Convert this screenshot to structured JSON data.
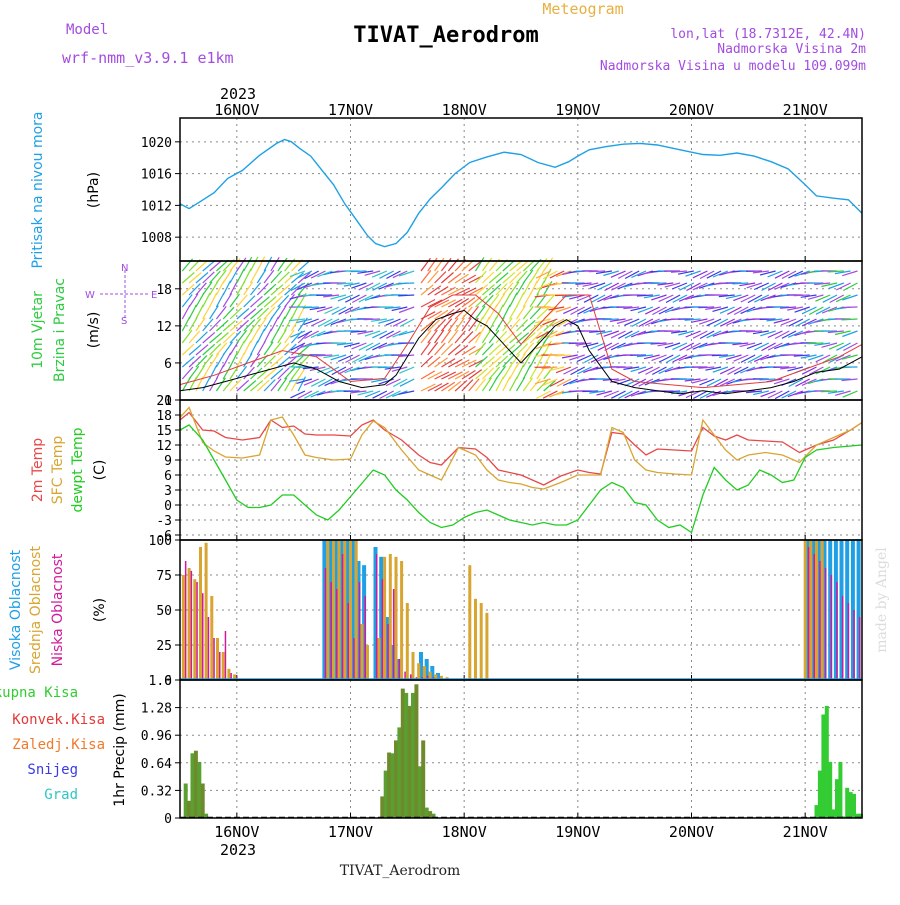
{
  "header": {
    "model_label": "Model",
    "model_name": "wrf-nmm_v3.9.1 e1km",
    "meteogram_label": "Meteogram",
    "station_title": "TIVAT_Aerodrom",
    "location_line": "lon,lat (18.7312E, 42.4N)",
    "elevation_line": "Nadmorska Visina 2m",
    "model_elevation_line": "Nadmorska Visina u modelu 109.099m",
    "watermark": "made by Angel",
    "footer_title": "TIVAT_Aerodrom"
  },
  "colors": {
    "pressure": "#1fa0e6",
    "rain_total": "#33cc33",
    "rain_conv": "#e33a3a",
    "rain_frozen": "#f07a2a",
    "snow": "#3a3ae6",
    "hail": "#2ec6c6",
    "temp2m": "#e84848",
    "sfc": "#d9a531",
    "dew": "#22cc22",
    "high": "#1fa0e6",
    "mid": "#d9a531",
    "low": "#d1199a",
    "wind_speed": "#000000",
    "gust": "#e33a3a",
    "model_purple": "#a24ce0",
    "meteogram_orange": "#e8b040"
  },
  "time_axis": {
    "year": "2023",
    "days": [
      "16NOV",
      "17NOV",
      "18NOV",
      "19NOV",
      "20NOV",
      "21NOV"
    ],
    "day_positions": [
      0.5,
      1.5,
      2.5,
      3.5,
      4.5,
      5.5
    ],
    "range": [
      0,
      6
    ]
  },
  "chart_data": [
    {
      "id": "pressure",
      "type": "line",
      "panel_label": "Pritisak na nivou mora",
      "ylabel": "(hPa)",
      "ylim": [
        1005,
        1023
      ],
      "yticks": [
        1008,
        1012,
        1016,
        1020
      ],
      "grid": true,
      "x": [
        0.0,
        0.08,
        0.17,
        0.3,
        0.42,
        0.55,
        0.7,
        0.85,
        0.92,
        0.98,
        1.05,
        1.15,
        1.25,
        1.35,
        1.45,
        1.55,
        1.65,
        1.72,
        1.8,
        1.9,
        2.0,
        2.1,
        2.2,
        2.3,
        2.42,
        2.55,
        2.7,
        2.85,
        3.0,
        3.15,
        3.3,
        3.42,
        3.5,
        3.6,
        3.75,
        3.9,
        4.05,
        4.2,
        4.4,
        4.6,
        4.75,
        4.9,
        5.05,
        5.2,
        5.35,
        5.5,
        5.6,
        5.75,
        5.88,
        6.0
      ],
      "values": [
        1012.2,
        1011.6,
        1012.4,
        1013.6,
        1015.4,
        1016.4,
        1018.3,
        1019.8,
        1020.3,
        1020.0,
        1019.2,
        1018.2,
        1016.4,
        1014.6,
        1012.2,
        1010.2,
        1008.2,
        1007.2,
        1006.8,
        1007.2,
        1008.6,
        1011.0,
        1012.8,
        1014.2,
        1016.0,
        1017.4,
        1018.1,
        1018.7,
        1018.4,
        1017.4,
        1016.8,
        1017.5,
        1018.2,
        1019.0,
        1019.4,
        1019.7,
        1019.8,
        1019.6,
        1019.0,
        1018.4,
        1018.3,
        1018.6,
        1018.2,
        1017.5,
        1016.6,
        1014.6,
        1013.2,
        1012.9,
        1012.7,
        1011.0
      ]
    },
    {
      "id": "wind",
      "type": "line",
      "panel_label_1": "10m Vjetar",
      "panel_label_2": "Brzina i Pravac",
      "ylabel": "(m/s)",
      "compass": [
        "N",
        "S",
        "W",
        "E"
      ],
      "ylim": [
        0,
        22.5
      ],
      "yticks": [
        0,
        6,
        12,
        18
      ],
      "grid": true,
      "series": [
        {
          "kind": "speed",
          "x": [
            0.0,
            0.2,
            0.4,
            0.6,
            0.8,
            1.0,
            1.2,
            1.4,
            1.6,
            1.8,
            1.9,
            2.0,
            2.1,
            2.25,
            2.4,
            2.5,
            2.6,
            2.7,
            2.8,
            2.9,
            3.0,
            3.1,
            3.2,
            3.3,
            3.4,
            3.5,
            3.6,
            3.8,
            4.0,
            4.2,
            4.4,
            4.6,
            4.8,
            5.0,
            5.2,
            5.4,
            5.6,
            5.8,
            6.0
          ],
          "values": [
            1.5,
            2.0,
            3.0,
            4.0,
            5.0,
            6.0,
            5.0,
            3.0,
            2.0,
            2.5,
            4.0,
            7.0,
            10.0,
            13.0,
            14.0,
            14.5,
            13.0,
            12.0,
            10.0,
            8.0,
            6.0,
            8.0,
            10.0,
            12.0,
            13.0,
            12.0,
            8.0,
            3.0,
            2.0,
            1.5,
            1.0,
            1.5,
            1.0,
            1.5,
            2.0,
            3.0,
            4.5,
            5.0,
            7.0
          ]
        },
        {
          "kind": "gust",
          "x": [
            0.0,
            0.3,
            0.6,
            0.9,
            1.2,
            1.5,
            1.8,
            2.0,
            2.2,
            2.4,
            2.6,
            2.8,
            3.0,
            3.2,
            3.4,
            3.6,
            3.8,
            4.0,
            4.3,
            4.6,
            4.9,
            5.2,
            5.5,
            5.8,
            6.0
          ],
          "values": [
            2.5,
            4.0,
            6.0,
            8.0,
            7.0,
            3.0,
            3.5,
            9.0,
            15.0,
            17.0,
            17.0,
            14.0,
            9.0,
            13.0,
            17.0,
            17.0,
            5.0,
            3.0,
            2.5,
            2.0,
            2.5,
            3.0,
            5.0,
            7.0,
            9.0
          ]
        }
      ]
    },
    {
      "id": "temperature",
      "type": "line",
      "panel_labels": [
        "2m Temp",
        "SFC Temp",
        "dewpt Temp"
      ],
      "ylabel": "(C)",
      "ylim": [
        -7,
        21
      ],
      "yticks": [
        -6,
        -3,
        0,
        3,
        6,
        9,
        12,
        15,
        18,
        21
      ],
      "grid": true,
      "series": [
        {
          "name": "2m Temp",
          "x": [
            0.0,
            0.08,
            0.2,
            0.3,
            0.4,
            0.55,
            0.7,
            0.8,
            0.9,
            1.0,
            1.1,
            1.2,
            1.35,
            1.5,
            1.6,
            1.7,
            1.8,
            1.95,
            2.1,
            2.2,
            2.3,
            2.45,
            2.6,
            2.7,
            2.8,
            2.9,
            3.0,
            3.1,
            3.2,
            3.35,
            3.5,
            3.6,
            3.7,
            3.8,
            3.9,
            4.0,
            4.1,
            4.2,
            4.35,
            4.5,
            4.6,
            4.7,
            4.8,
            4.9,
            5.0,
            5.15,
            5.3,
            5.45,
            5.6,
            5.75,
            5.9,
            6.0
          ],
          "values": [
            17.0,
            18.5,
            15.0,
            14.8,
            13.5,
            13.0,
            13.5,
            17.0,
            15.5,
            15.8,
            14.2,
            14.0,
            14.0,
            13.8,
            16.0,
            17.0,
            15.0,
            13.0,
            10.0,
            8.5,
            8.0,
            11.5,
            11.2,
            9.5,
            7.0,
            6.5,
            6.0,
            5.0,
            4.0,
            5.8,
            7.0,
            6.5,
            6.2,
            14.5,
            14.2,
            12.0,
            10.0,
            11.2,
            11.0,
            10.8,
            15.5,
            13.8,
            13.0,
            14.0,
            13.0,
            12.8,
            12.6,
            10.5,
            12.0,
            13.0,
            15.0,
            16.5
          ]
        },
        {
          "name": "SFC Temp",
          "x": [
            0.0,
            0.08,
            0.2,
            0.3,
            0.4,
            0.55,
            0.7,
            0.8,
            0.9,
            1.0,
            1.1,
            1.2,
            1.35,
            1.5,
            1.6,
            1.7,
            1.8,
            1.95,
            2.1,
            2.2,
            2.3,
            2.45,
            2.6,
            2.7,
            2.8,
            2.9,
            3.0,
            3.1,
            3.2,
            3.35,
            3.5,
            3.6,
            3.7,
            3.8,
            3.9,
            4.0,
            4.1,
            4.2,
            4.35,
            4.5,
            4.6,
            4.7,
            4.8,
            4.9,
            5.0,
            5.15,
            5.3,
            5.45,
            5.6,
            5.75,
            5.9,
            6.0
          ],
          "values": [
            17.5,
            19.5,
            12.5,
            10.8,
            9.6,
            9.4,
            10.0,
            17.0,
            17.6,
            14.0,
            10.0,
            9.5,
            9.0,
            9.2,
            14.0,
            16.8,
            15.5,
            11.0,
            7.0,
            6.0,
            5.0,
            11.5,
            10.0,
            7.0,
            5.0,
            4.5,
            4.2,
            3.5,
            3.2,
            4.5,
            6.0,
            6.0,
            6.0,
            15.5,
            14.5,
            9.0,
            7.0,
            6.5,
            6.2,
            6.0,
            17.0,
            14.0,
            11.0,
            9.0,
            10.0,
            10.5,
            10.0,
            8.5,
            12.0,
            13.5,
            15.0,
            16.5
          ]
        },
        {
          "name": "dewpt Temp",
          "x": [
            0.0,
            0.08,
            0.2,
            0.3,
            0.4,
            0.5,
            0.6,
            0.7,
            0.8,
            0.9,
            1.0,
            1.1,
            1.2,
            1.3,
            1.4,
            1.55,
            1.7,
            1.8,
            1.9,
            2.0,
            2.1,
            2.2,
            2.3,
            2.4,
            2.5,
            2.6,
            2.7,
            2.8,
            2.9,
            3.0,
            3.1,
            3.2,
            3.3,
            3.4,
            3.5,
            3.6,
            3.7,
            3.8,
            3.9,
            4.0,
            4.1,
            4.2,
            4.3,
            4.4,
            4.5,
            4.6,
            4.7,
            4.8,
            4.9,
            5.0,
            5.1,
            5.2,
            5.3,
            5.4,
            5.5,
            5.6,
            5.75,
            5.9,
            6.0
          ],
          "values": [
            15.0,
            16.0,
            13.0,
            9.0,
            5.0,
            1.0,
            -0.5,
            -0.5,
            0.0,
            2.0,
            2.0,
            0.0,
            -2.0,
            -3.0,
            -1.0,
            3.0,
            7.0,
            6.0,
            3.0,
            1.0,
            -1.5,
            -3.5,
            -4.5,
            -4.0,
            -2.5,
            -1.5,
            -1.0,
            -2.0,
            -3.0,
            -3.5,
            -4.0,
            -3.5,
            -4.0,
            -4.0,
            -3.0,
            0.0,
            3.0,
            4.5,
            3.5,
            0.5,
            0.0,
            -3.0,
            -4.5,
            -4.0,
            -5.5,
            2.0,
            7.5,
            5.0,
            3.0,
            4.0,
            7.0,
            6.0,
            4.5,
            5.0,
            9.5,
            11.0,
            11.5,
            11.8,
            12.0
          ]
        }
      ]
    },
    {
      "id": "clouds",
      "type": "bar",
      "panel_labels": [
        "Visoka Oblacnost",
        "Srednja Oblacnost",
        "Niska Oblacnost"
      ],
      "ylabel": "(%)",
      "ylim": [
        0,
        100
      ],
      "yticks": [
        0,
        25,
        50,
        75,
        100
      ],
      "grid": true,
      "series": [
        {
          "name": "Visoka Oblacnost",
          "x": [
            1.27,
            1.32,
            1.37,
            1.42,
            1.47,
            1.52,
            1.57,
            1.62,
            1.72,
            1.77,
            1.82,
            1.87,
            1.92,
            2.12,
            2.17,
            2.22,
            2.27,
            5.52,
            5.57,
            5.62,
            5.67,
            5.72,
            5.77,
            5.82,
            5.87,
            5.92,
            5.97
          ],
          "values": [
            100,
            100,
            100,
            100,
            100,
            100,
            85,
            82,
            95,
            88,
            45,
            25,
            15,
            20,
            15,
            10,
            5,
            100,
            100,
            100,
            100,
            100,
            100,
            100,
            100,
            100,
            100
          ]
        },
        {
          "name": "Srednja Oblacnost",
          "x": [
            0.03,
            0.08,
            0.13,
            0.18,
            0.23,
            0.28,
            0.33,
            0.38,
            0.43,
            0.48,
            1.3,
            1.35,
            1.4,
            1.45,
            1.5,
            1.55,
            1.6,
            1.65,
            1.75,
            1.8,
            1.85,
            1.9,
            1.95,
            2.0,
            2.05,
            2.1,
            2.15,
            2.2,
            2.25,
            2.3,
            2.35,
            2.55,
            2.6,
            2.65,
            2.7,
            5.5,
            5.55,
            5.6,
            5.65
          ],
          "values": [
            75,
            80,
            72,
            95,
            98,
            60,
            30,
            20,
            8,
            4,
            100,
            100,
            100,
            100,
            100,
            100,
            40,
            25,
            30,
            88,
            90,
            88,
            85,
            55,
            20,
            12,
            10,
            6,
            4,
            3,
            2,
            82,
            58,
            55,
            48,
            100,
            100,
            100,
            100
          ]
        },
        {
          "name": "Niska Oblacnost",
          "x": [
            0.05,
            0.1,
            0.15,
            0.2,
            0.25,
            0.3,
            0.35,
            0.4,
            0.45,
            0.5,
            1.28,
            1.33,
            1.38,
            1.43,
            1.48,
            1.53,
            1.58,
            1.63,
            1.73,
            1.78,
            1.83,
            1.88,
            1.93,
            1.98,
            2.03,
            2.08,
            2.13,
            2.18,
            2.23,
            2.28,
            2.33,
            5.53,
            5.58,
            5.63,
            5.68,
            5.73,
            5.78,
            5.83,
            5.88,
            5.93,
            5.98
          ],
          "values": [
            85,
            78,
            70,
            62,
            45,
            30,
            20,
            35,
            5,
            2,
            80,
            70,
            65,
            90,
            55,
            30,
            70,
            60,
            90,
            72,
            40,
            65,
            15,
            6,
            4,
            2,
            2,
            3,
            2,
            1,
            1,
            95,
            90,
            85,
            80,
            75,
            70,
            60,
            55,
            50,
            45
          ]
        }
      ]
    },
    {
      "id": "precip",
      "type": "bar",
      "panel_labels": [
        "Ukupna Kisa",
        "Konvek.Kisa",
        "Zaledj.Kisa",
        "Snijeg",
        "Grad"
      ],
      "ylabel": "1hr Precip (mm)",
      "ylim": [
        0,
        1.6
      ],
      "yticks": [
        0,
        0.32,
        0.64,
        0.96,
        1.28,
        1.6
      ],
      "grid": true,
      "series": [
        {
          "name": "Ukupna Kisa",
          "x": [
            0.05,
            0.08,
            0.11,
            0.14,
            0.17,
            0.2,
            0.23,
            1.78,
            1.81,
            1.84,
            1.87,
            1.9,
            1.93,
            1.96,
            1.99,
            2.02,
            2.05,
            2.08,
            2.11,
            2.14,
            2.17,
            2.2,
            2.23,
            5.6,
            5.63,
            5.66,
            5.69,
            5.72,
            5.75,
            5.78,
            5.81,
            5.84,
            5.87,
            5.9,
            5.93,
            5.96,
            5.99
          ],
          "values": [
            0.4,
            0.2,
            0.75,
            0.78,
            0.65,
            0.4,
            0.05,
            0.25,
            0.55,
            0.76,
            0.75,
            0.9,
            1.05,
            1.5,
            1.45,
            1.3,
            1.45,
            1.55,
            0.6,
            0.9,
            0.12,
            0.08,
            0.05,
            0.15,
            0.55,
            1.2,
            1.3,
            0.65,
            0.1,
            0.45,
            0.65,
            0.02,
            0.35,
            0.3,
            0.28,
            0.05,
            0.05
          ]
        }
      ]
    }
  ]
}
